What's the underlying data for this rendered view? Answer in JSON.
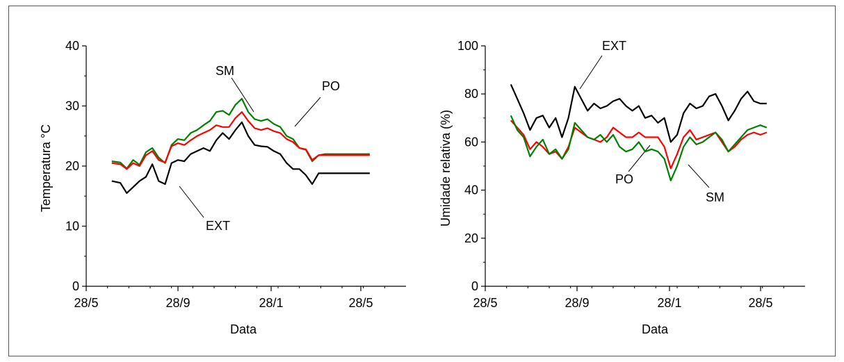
{
  "chart_data": [
    {
      "type": "line",
      "xlabel": "Data",
      "ylabel": "Temperatura °C",
      "ylim": [
        0,
        40
      ],
      "yticks": [
        0,
        10,
        20,
        30,
        40
      ],
      "xticks": [
        "28/5",
        "28/9",
        "28/1",
        "28/5"
      ],
      "x_unit": "months since 28/5",
      "xlim": [
        0,
        15
      ],
      "colors": {
        "EXT": "#000000",
        "PO": "#ff0000",
        "SM": "#008000"
      },
      "series": [
        {
          "name": "SM",
          "x": [
            1.2,
            1.6,
            1.9,
            2.2,
            2.5,
            2.8,
            3.1,
            3.4,
            3.7,
            4.0,
            4.3,
            4.6,
            4.9,
            5.2,
            5.5,
            5.8,
            6.1,
            6.4,
            6.7,
            7.0,
            7.3,
            7.6,
            7.9,
            8.2,
            8.5,
            8.8,
            9.1,
            9.4,
            9.7,
            10.0,
            10.3,
            10.6,
            10.9,
            11.2,
            11.5,
            11.8,
            12.1,
            12.4,
            12.7,
            13.0,
            13.3
          ],
          "y": [
            20.8,
            20.6,
            19.6,
            21.0,
            20.2,
            22.3,
            23.0,
            21.4,
            20.5,
            23.5,
            24.5,
            24.3,
            25.5,
            26.0,
            26.8,
            27.5,
            29.0,
            29.2,
            28.5,
            30.2,
            31.2,
            29.0,
            27.8,
            27.5,
            27.8,
            27.0,
            26.5,
            25.0,
            24.5,
            23.0,
            22.7,
            20.8,
            21.8,
            22.0,
            22.0,
            22.0,
            22.0,
            22.0,
            22.0,
            22.0,
            22.0
          ]
        },
        {
          "name": "PO",
          "x": [
            1.2,
            1.6,
            1.9,
            2.2,
            2.5,
            2.8,
            3.1,
            3.4,
            3.7,
            4.0,
            4.3,
            4.6,
            4.9,
            5.2,
            5.5,
            5.8,
            6.1,
            6.4,
            6.7,
            7.0,
            7.3,
            7.6,
            7.9,
            8.2,
            8.5,
            8.8,
            9.1,
            9.4,
            9.7,
            10.0,
            10.3,
            10.6,
            10.9,
            11.2,
            11.5,
            11.8,
            12.1,
            12.4,
            12.7,
            13.0,
            13.3
          ],
          "y": [
            20.5,
            20.3,
            19.5,
            20.5,
            20.0,
            21.8,
            22.5,
            21.0,
            20.6,
            23.3,
            23.8,
            23.5,
            24.3,
            25.0,
            25.5,
            26.0,
            26.8,
            26.5,
            26.5,
            28.0,
            29.0,
            27.5,
            26.3,
            26.0,
            26.3,
            25.8,
            25.5,
            24.5,
            24.0,
            23.0,
            22.8,
            21.0,
            21.8,
            21.8,
            21.8,
            21.8,
            21.8,
            21.8,
            21.8,
            21.8,
            21.8
          ]
        },
        {
          "name": "EXT",
          "x": [
            1.2,
            1.6,
            1.9,
            2.2,
            2.5,
            2.8,
            3.1,
            3.4,
            3.7,
            4.0,
            4.3,
            4.6,
            4.9,
            5.2,
            5.5,
            5.8,
            6.1,
            6.4,
            6.7,
            7.0,
            7.3,
            7.6,
            7.9,
            8.2,
            8.5,
            8.8,
            9.1,
            9.4,
            9.7,
            10.0,
            10.3,
            10.6,
            10.9,
            11.2,
            11.5,
            11.8,
            12.1,
            12.4,
            12.7,
            13.0,
            13.3
          ],
          "y": [
            17.5,
            17.2,
            15.5,
            16.5,
            17.5,
            18.2,
            20.3,
            17.5,
            17.0,
            20.5,
            21.0,
            20.8,
            22.0,
            22.5,
            23.0,
            22.5,
            24.3,
            25.5,
            24.5,
            26.0,
            27.3,
            25.0,
            23.5,
            23.3,
            23.2,
            22.5,
            22.0,
            20.5,
            19.5,
            19.5,
            18.5,
            17.0,
            18.8,
            18.8,
            18.8,
            18.8,
            18.8,
            18.8,
            18.8,
            18.8,
            18.8
          ]
        }
      ],
      "annotations": [
        "SM",
        "PO",
        "EXT"
      ]
    },
    {
      "type": "line",
      "xlabel": "Data",
      "ylabel": "Umidade relativa (%)",
      "ylim": [
        0,
        100
      ],
      "yticks": [
        0,
        20,
        40,
        60,
        80,
        100
      ],
      "xticks": [
        "28/5",
        "28/9",
        "28/1",
        "28/5"
      ],
      "x_unit": "months since 28/5",
      "xlim": [
        0,
        15
      ],
      "colors": {
        "EXT": "#000000",
        "PO": "#ff0000",
        "SM": "#008000"
      },
      "series": [
        {
          "name": "EXT",
          "x": [
            1.2,
            1.5,
            1.8,
            2.1,
            2.4,
            2.7,
            3.0,
            3.3,
            3.6,
            3.9,
            4.2,
            4.5,
            4.8,
            5.1,
            5.4,
            5.7,
            6.0,
            6.3,
            6.6,
            6.9,
            7.2,
            7.5,
            7.8,
            8.1,
            8.4,
            8.7,
            9.0,
            9.3,
            9.6,
            9.9,
            10.2,
            10.5,
            10.8,
            11.1,
            11.4,
            11.7,
            12.0,
            12.3,
            12.6,
            12.9,
            13.2
          ],
          "y": [
            84,
            78,
            72,
            65,
            70,
            71,
            66,
            70,
            62,
            70,
            83,
            78,
            73,
            76,
            74,
            75,
            77,
            78,
            75,
            73,
            75,
            70,
            71,
            68,
            70,
            60,
            63,
            72,
            76,
            74,
            75,
            79,
            80,
            75,
            69,
            73,
            78,
            81,
            77,
            76,
            76
          ]
        },
        {
          "name": "PO",
          "x": [
            1.2,
            1.5,
            1.8,
            2.1,
            2.4,
            2.7,
            3.0,
            3.3,
            3.6,
            3.9,
            4.2,
            4.5,
            4.8,
            5.1,
            5.4,
            5.7,
            6.0,
            6.3,
            6.6,
            6.9,
            7.2,
            7.5,
            7.8,
            8.1,
            8.4,
            8.7,
            9.0,
            9.3,
            9.6,
            9.9,
            10.2,
            10.5,
            10.8,
            11.1,
            11.4,
            11.7,
            12.0,
            12.3,
            12.6,
            12.9,
            13.2
          ],
          "y": [
            69,
            66,
            63,
            57,
            60,
            58,
            55,
            56,
            53,
            58,
            66,
            64,
            62,
            61,
            60,
            62,
            66,
            64,
            62,
            62,
            64,
            62,
            62,
            62,
            58,
            49,
            55,
            62,
            65,
            61,
            62,
            63,
            64,
            60,
            56,
            58,
            61,
            63,
            64,
            63,
            64
          ]
        },
        {
          "name": "SM",
          "x": [
            1.2,
            1.5,
            1.8,
            2.1,
            2.4,
            2.7,
            3.0,
            3.3,
            3.6,
            3.9,
            4.2,
            4.5,
            4.8,
            5.1,
            5.4,
            5.7,
            6.0,
            6.3,
            6.6,
            6.9,
            7.2,
            7.5,
            7.8,
            8.1,
            8.4,
            8.7,
            9.0,
            9.3,
            9.6,
            9.9,
            10.2,
            10.5,
            10.8,
            11.1,
            11.4,
            11.7,
            12.0,
            12.3,
            12.6,
            12.9,
            13.2
          ],
          "y": [
            71,
            65,
            62,
            54,
            58,
            61,
            55,
            57,
            53,
            57,
            68,
            65,
            62,
            61,
            63,
            60,
            63,
            58,
            56,
            57,
            60,
            56,
            57,
            56,
            53,
            44,
            50,
            58,
            62,
            59,
            60,
            62,
            64,
            61,
            56,
            59,
            62,
            65,
            66,
            67,
            66
          ]
        }
      ],
      "annotations": [
        "EXT",
        "PO",
        "SM"
      ]
    }
  ]
}
